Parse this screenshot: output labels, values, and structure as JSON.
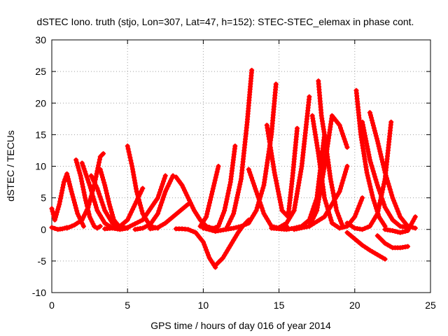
{
  "chart_data": {
    "type": "scatter",
    "title": "dSTEC Iono. truth (stjo, Lon=307, Lat=47, h=152): STEC-STEC_elemax in phase cont.",
    "xlabel": "GPS time / hours of day 016 of year 2014",
    "ylabel": "dSTEC  / TECUs",
    "xlim": [
      0,
      25
    ],
    "ylim": [
      -10,
      30
    ],
    "xticks": [
      "0",
      "5",
      "10",
      "15",
      "20",
      "25"
    ],
    "yticks": [
      "-10",
      "-5",
      "0",
      "5",
      "10",
      "15",
      "20",
      "25",
      "30"
    ],
    "grid": true,
    "marker": "+",
    "color": "#ff0000",
    "series": [
      {
        "x": [
          0.0,
          0.2,
          0.5,
          0.8,
          1.0,
          1.3,
          1.7,
          2.1
        ],
        "y": [
          3.3,
          1.5,
          4.0,
          7.5,
          8.8,
          6.0,
          2.5,
          0.5
        ]
      },
      {
        "x": [
          0.0,
          0.4,
          0.7,
          1.0
        ],
        "y": [
          0.3,
          0.0,
          0.1,
          0.3
        ]
      },
      {
        "x": [
          1.6,
          1.9,
          2.2,
          2.5,
          2.8,
          3.0,
          3.2
        ],
        "y": [
          11.0,
          8.5,
          5.0,
          2.0,
          0.5,
          0.2,
          0.5
        ]
      },
      {
        "x": [
          1.0,
          1.5,
          2.0,
          2.4,
          2.8,
          3.2,
          3.4
        ],
        "y": [
          0.2,
          0.7,
          1.5,
          3.5,
          7.0,
          11.5,
          12.0
        ]
      },
      {
        "x": [
          2.0,
          2.5,
          3.0,
          3.5,
          4.0,
          4.5,
          5.0
        ],
        "y": [
          10.5,
          7.0,
          3.0,
          1.0,
          0.2,
          0.0,
          0.2
        ]
      },
      {
        "x": [
          2.6,
          3.0,
          3.5,
          4.0,
          4.5
        ],
        "y": [
          8.5,
          6.5,
          3.0,
          1.0,
          0.2
        ]
      },
      {
        "x": [
          3.2,
          3.5,
          3.8,
          4.1,
          4.5,
          5.0
        ],
        "y": [
          9.5,
          7.0,
          4.0,
          1.5,
          0.3,
          0.2
        ]
      },
      {
        "x": [
          3.5,
          4.0,
          4.5,
          5.0,
          5.5,
          6.0
        ],
        "y": [
          0.1,
          0.2,
          0.5,
          1.5,
          4.0,
          6.5
        ]
      },
      {
        "x": [
          5.0,
          5.3,
          5.6,
          6.0,
          6.5,
          7.0
        ],
        "y": [
          13.2,
          10.0,
          6.0,
          2.5,
          0.5,
          0.2
        ]
      },
      {
        "x": [
          4.0,
          5.0,
          6.0,
          7.0,
          7.5
        ],
        "y": [
          0.2,
          0.3,
          1.5,
          5.0,
          8.5
        ]
      },
      {
        "x": [
          5.5,
          6.0,
          6.5,
          7.0,
          7.5,
          8.0
        ],
        "y": [
          0.0,
          0.2,
          0.8,
          2.5,
          6.0,
          8.5
        ]
      },
      {
        "x": [
          6.5,
          7.0,
          7.5,
          8.0,
          8.5,
          9.0
        ],
        "y": [
          0.1,
          0.3,
          1.0,
          2.0,
          3.0,
          4.0
        ]
      },
      {
        "x": [
          8.2,
          8.6,
          9.0,
          9.4,
          9.8,
          10.2,
          10.6
        ],
        "y": [
          8.3,
          7.0,
          5.0,
          3.0,
          1.5,
          0.5,
          0.2
        ]
      },
      {
        "x": [
          8.2,
          8.6,
          9.0,
          9.5,
          10.0,
          10.4,
          10.8
        ],
        "y": [
          0.1,
          0.1,
          0.0,
          -0.5,
          -2.0,
          -4.5,
          -6.0
        ]
      },
      {
        "x": [
          10.8,
          11.3,
          11.8,
          12.3,
          12.6,
          13.0
        ],
        "y": [
          -5.7,
          -4.5,
          -2.5,
          -0.5,
          0.5,
          1.5
        ]
      },
      {
        "x": [
          10.0,
          10.5,
          11.0,
          11.4,
          11.8,
          12.1
        ],
        "y": [
          0.2,
          0.0,
          0.5,
          3.0,
          7.5,
          13.2
        ]
      },
      {
        "x": [
          9.8,
          10.2,
          10.6,
          11.0
        ],
        "y": [
          0.5,
          2.0,
          6.0,
          10.0
        ]
      },
      {
        "x": [
          10.2,
          10.8,
          11.5,
          12.0,
          12.5,
          12.9,
          13.2
        ],
        "y": [
          0.1,
          -0.3,
          0.0,
          2.5,
          8.0,
          17.0,
          25.2
        ]
      },
      {
        "x": [
          11.5,
          12.0,
          12.5,
          13.0,
          13.5,
          14.0,
          14.5,
          14.8
        ],
        "y": [
          0.0,
          0.2,
          0.5,
          1.0,
          3.0,
          7.0,
          15.0,
          23.0
        ]
      },
      {
        "x": [
          13.0,
          13.5,
          14.0,
          14.5,
          15.0,
          15.5
        ],
        "y": [
          9.5,
          6.0,
          2.5,
          0.5,
          0.2,
          0.5
        ]
      },
      {
        "x": [
          14.2,
          14.7,
          15.2,
          15.6,
          15.9,
          16.2
        ],
        "y": [
          16.5,
          9.0,
          3.0,
          2.0,
          8.5,
          16.0
        ]
      },
      {
        "x": [
          15.0,
          15.5,
          16.0,
          16.5,
          17.0
        ],
        "y": [
          0.3,
          1.0,
          3.0,
          10.0,
          21.0
        ]
      },
      {
        "x": [
          14.5,
          15.0,
          15.5,
          16.0,
          16.5,
          17.0,
          17.5,
          18.0
        ],
        "y": [
          0.2,
          0.1,
          0.0,
          0.2,
          0.5,
          1.5,
          5.0,
          15.0
        ]
      },
      {
        "x": [
          17.6,
          17.8,
          18.0,
          18.4,
          18.8,
          19.2
        ],
        "y": [
          23.5,
          18.0,
          15.0,
          8.0,
          3.0,
          0.5
        ]
      },
      {
        "x": [
          17.2,
          17.6,
          18.0,
          18.5,
          19.0,
          19.5,
          20.0,
          20.5
        ],
        "y": [
          18.0,
          12.0,
          5.0,
          1.0,
          0.2,
          0.5,
          2.0,
          5.0
        ]
      },
      {
        "x": [
          17.0,
          17.5,
          18.0,
          18.5,
          19.0,
          19.5
        ],
        "y": [
          0.5,
          3.0,
          10.0,
          18.0,
          16.5,
          13.0
        ]
      },
      {
        "x": [
          16.0,
          17.0,
          18.0,
          19.0,
          19.5
        ],
        "y": [
          0.0,
          0.5,
          2.0,
          6.0,
          10.0
        ]
      },
      {
        "x": [
          20.1,
          20.4,
          20.8,
          21.2,
          21.6,
          22.0
        ],
        "y": [
          22.0,
          15.0,
          9.0,
          5.0,
          2.0,
          0.5
        ]
      },
      {
        "x": [
          20.5,
          21.0,
          21.5,
          22.0,
          22.5,
          23.0,
          23.5
        ],
        "y": [
          17.0,
          11.0,
          7.0,
          3.5,
          1.5,
          0.5,
          0.3
        ]
      },
      {
        "x": [
          21.0,
          21.5,
          22.0,
          22.5,
          23.0,
          23.5,
          24.0
        ],
        "y": [
          18.5,
          14.0,
          9.0,
          5.0,
          2.0,
          0.5,
          0.2
        ]
      },
      {
        "x": [
          19.5,
          20.0,
          20.5,
          21.0,
          21.5,
          22.0,
          22.4
        ],
        "y": [
          1.0,
          0.2,
          0.0,
          0.5,
          2.5,
          8.0,
          17.0
        ]
      },
      {
        "x": [
          19.5,
          20.0,
          20.5,
          21.0,
          21.5,
          22.0
        ],
        "y": [
          -0.5,
          -1.5,
          -2.5,
          -3.3,
          -4.0,
          -4.7
        ]
      },
      {
        "x": [
          21.5,
          22.0,
          22.5,
          23.0,
          23.5
        ],
        "y": [
          -1.0,
          -2.2,
          -2.9,
          -2.9,
          -2.7
        ]
      },
      {
        "x": [
          22.0,
          22.5,
          23.0,
          23.5,
          24.0
        ],
        "y": [
          0.0,
          -0.2,
          -0.5,
          -0.2,
          2.0
        ]
      }
    ]
  }
}
